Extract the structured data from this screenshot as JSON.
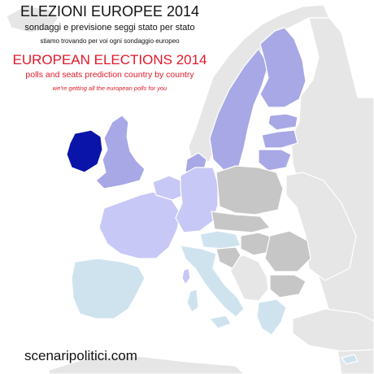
{
  "header": {
    "it_title": "ELEZIONI EUROPEE 2014",
    "it_subtitle": "sondaggi e previsione seggi stato per stato",
    "it_note": "stiamo trovando per voi ogni sondaggio europeo",
    "en_title": "EUROPEAN ELECTIONS 2014",
    "en_subtitle": "polls and seats prediction country by country",
    "en_note": "we're getting all the european polls for you"
  },
  "footer": {
    "site": "scenaripolitici.com"
  },
  "colors": {
    "background": "#ffffff",
    "non_eu_land": "#e6e6e6",
    "highlight": "#0a14a8",
    "done_dark": "#a8a8e6",
    "done_light": "#c8c8f6",
    "pending": "#cfe3ef",
    "no_data": "#c6c6c6",
    "border": "#ffffff",
    "italian_text": "#111111",
    "english_text": "#e0192a"
  }
}
